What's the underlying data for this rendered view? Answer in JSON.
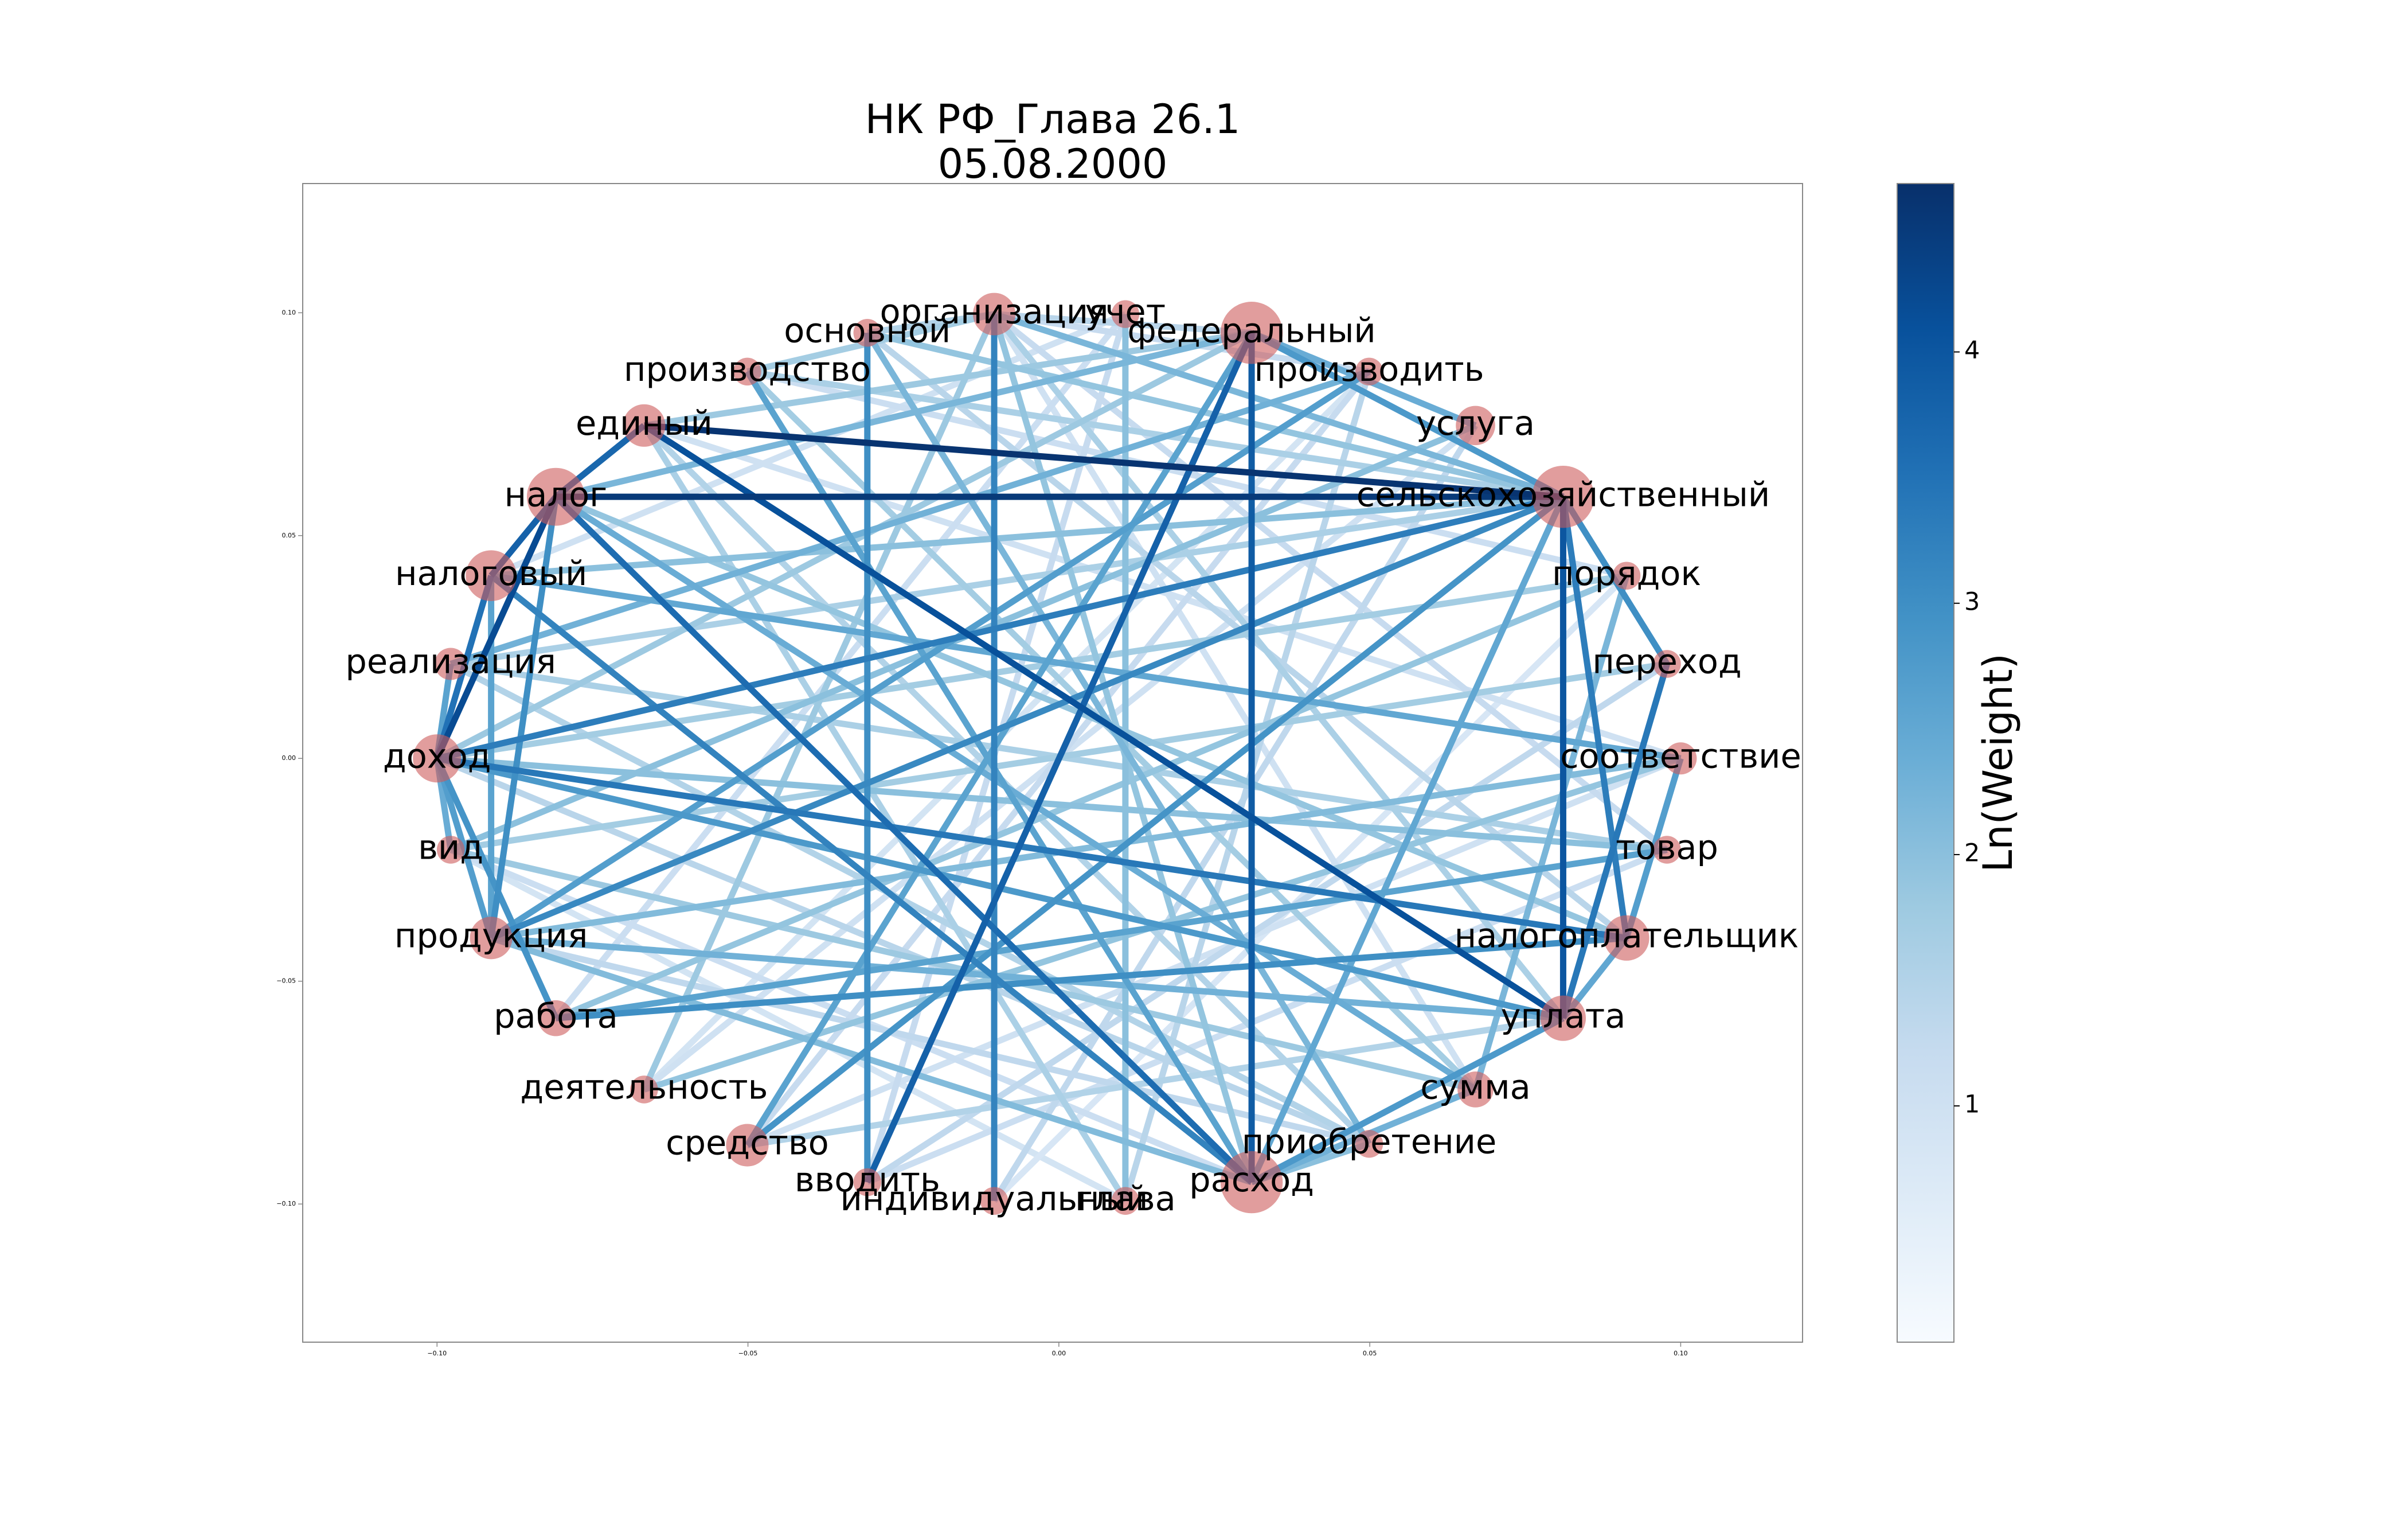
{
  "chart_data": {
    "type": "network",
    "title": "НК РФ_Глава 26.1",
    "subtitle": "05.08.2000",
    "xlim": [
      -0.1216,
      0.1196
    ],
    "ylim": [
      -0.131,
      0.129
    ],
    "xticks": [
      {
        "value": -0.1,
        "label": "−0.10"
      },
      {
        "value": -0.05,
        "label": "−0.05"
      },
      {
        "value": 0,
        "label": "0.00"
      },
      {
        "value": 0.05,
        "label": "0.05"
      },
      {
        "value": 0.1,
        "label": "0.10"
      }
    ],
    "yticks": [
      {
        "value": -0.1,
        "label": "−0.10"
      },
      {
        "value": -0.05,
        "label": "−0.05"
      },
      {
        "value": 0,
        "label": "0.00"
      },
      {
        "value": 0.05,
        "label": "0.05"
      },
      {
        "value": 0.1,
        "label": "0.10"
      }
    ],
    "node_color": "#cd5c5c",
    "nodes": [
      {
        "label": "организация",
        "x": -0.0104,
        "y": 0.0997,
        "size": 700
      },
      {
        "label": "учет",
        "x": 0.0107,
        "y": 0.0997,
        "size": 300
      },
      {
        "label": "федеральный",
        "x": 0.031,
        "y": 0.0955,
        "size": 1500
      },
      {
        "label": "производить",
        "x": 0.0499,
        "y": 0.0868,
        "size": 300
      },
      {
        "label": "услуга",
        "x": 0.067,
        "y": 0.0747,
        "size": 600
      },
      {
        "label": "сельскохозяйственный",
        "x": 0.0811,
        "y": 0.0587,
        "size": 1500
      },
      {
        "label": "порядок",
        "x": 0.0913,
        "y": 0.041,
        "size": 300
      },
      {
        "label": "переход",
        "x": 0.0978,
        "y": 0.0212,
        "size": 300
      },
      {
        "label": "соответствие",
        "x": 0.1,
        "y": 0,
        "size": 400
      },
      {
        "label": "товар",
        "x": 0.0978,
        "y": -0.0205,
        "size": 300
      },
      {
        "label": "налогоплательщик",
        "x": 0.0913,
        "y": -0.0403,
        "size": 800
      },
      {
        "label": "уплата",
        "x": 0.0811,
        "y": -0.0583,
        "size": 800
      },
      {
        "label": "сумма",
        "x": 0.067,
        "y": -0.0743,
        "size": 500
      },
      {
        "label": "приобретение",
        "x": 0.0499,
        "y": -0.0865,
        "size": 300
      },
      {
        "label": "расход",
        "x": 0.031,
        "y": -0.0951,
        "size": 1500
      },
      {
        "label": "глава",
        "x": 0.0107,
        "y": -0.0993,
        "size": 300
      },
      {
        "label": "индивидуальный",
        "x": -0.0104,
        "y": -0.0993,
        "size": 300
      },
      {
        "label": "вводить",
        "x": -0.0308,
        "y": -0.0951,
        "size": 300
      },
      {
        "label": "средство",
        "x": -0.0501,
        "y": -0.0868,
        "size": 700
      },
      {
        "label": "деятельность",
        "x": -0.0667,
        "y": -0.0743,
        "size": 300
      },
      {
        "label": "работа",
        "x": -0.0809,
        "y": -0.0583,
        "size": 500
      },
      {
        "label": "продукция",
        "x": -0.0913,
        "y": -0.0403,
        "size": 700
      },
      {
        "label": "вид",
        "x": -0.0978,
        "y": -0.0205,
        "size": 300
      },
      {
        "label": "доход",
        "x": -0.1,
        "y": 0,
        "size": 900
      },
      {
        "label": "реализация",
        "x": -0.0978,
        "y": 0.0212,
        "size": 400
      },
      {
        "label": "налоговый",
        "x": -0.0913,
        "y": 0.041,
        "size": 1000
      },
      {
        "label": "налог",
        "x": -0.0809,
        "y": 0.0587,
        "size": 1300
      },
      {
        "label": "единый",
        "x": -0.0667,
        "y": 0.0747,
        "size": 700
      },
      {
        "label": "производство",
        "x": -0.0501,
        "y": 0.0868,
        "size": 300
      },
      {
        "label": "основной",
        "x": -0.0308,
        "y": 0.0955,
        "size": 300
      }
    ],
    "edges": [
      [
        15,
        22,
        0.9
      ],
      [
        16,
        6,
        0.8
      ],
      [
        19,
        3,
        0.9
      ],
      [
        20,
        1,
        0.7
      ],
      [
        1,
        25,
        1.0
      ],
      [
        4,
        19,
        1.0
      ],
      [
        8,
        27,
        1.0
      ],
      [
        12,
        0,
        1.0
      ],
      [
        18,
        8,
        1.0
      ],
      [
        1,
        20,
        1.1
      ],
      [
        6,
        28,
        1.1
      ],
      [
        17,
        9,
        1.1
      ],
      [
        22,
        14,
        1.1
      ],
      [
        17,
        1,
        1.2
      ],
      [
        3,
        18,
        1.2
      ],
      [
        9,
        0,
        1.2
      ],
      [
        0,
        3,
        1.2
      ],
      [
        16,
        4,
        1.3
      ],
      [
        7,
        17,
        1.3
      ],
      [
        21,
        13,
        1.3
      ],
      [
        15,
        3,
        1.4
      ],
      [
        29,
        10,
        1.4
      ],
      [
        13,
        23,
        1.4
      ],
      [
        0,
        2,
        1.4
      ],
      [
        13,
        24,
        1.5
      ],
      [
        27,
        13,
        1.5
      ],
      [
        11,
        18,
        1.5
      ],
      [
        0,
        29,
        1.5
      ],
      [
        15,
        27,
        1.6
      ],
      [
        24,
        9,
        1.6
      ],
      [
        0,
        11,
        1.6
      ],
      [
        24,
        5,
        1.6
      ],
      [
        28,
        5,
        1.6
      ],
      [
        22,
        7,
        1.7
      ],
      [
        28,
        12,
        1.7
      ],
      [
        6,
        23,
        1.7
      ],
      [
        0,
        28,
        1.7
      ],
      [
        12,
        22,
        1.8
      ],
      [
        19,
        0,
        1.8
      ],
      [
        2,
        23,
        1.8
      ],
      [
        27,
        2,
        1.8
      ],
      [
        8,
        19,
        1.9
      ],
      [
        20,
        6,
        1.9
      ],
      [
        0,
        14,
        1.9
      ],
      [
        10,
        26,
        1.9
      ],
      [
        29,
        5,
        1.9
      ],
      [
        1,
        15,
        2.0
      ],
      [
        4,
        22,
        2.0
      ],
      [
        9,
        23,
        2.0
      ],
      [
        25,
        5,
        2.0
      ],
      [
        14,
        13,
        2.0
      ],
      [
        8,
        21,
        2.1
      ],
      [
        14,
        21,
        2.1
      ],
      [
        0,
        5,
        2.2
      ],
      [
        6,
        12,
        2.2
      ],
      [
        13,
        29,
        2.2
      ],
      [
        26,
        2,
        2.2
      ],
      [
        3,
        24,
        2.3
      ],
      [
        21,
        11,
        2.3
      ],
      [
        14,
        12,
        2.3
      ],
      [
        2,
        4,
        2.4
      ],
      [
        12,
        26,
        2.4
      ],
      [
        23,
        22,
        2.4
      ],
      [
        14,
        5,
        2.5
      ],
      [
        25,
        8,
        2.5
      ],
      [
        10,
        11,
        2.5
      ],
      [
        28,
        14,
        2.6
      ],
      [
        9,
        20,
        2.6
      ],
      [
        18,
        2,
        2.6
      ],
      [
        23,
        24,
        2.6
      ],
      [
        25,
        21,
        2.6
      ],
      [
        3,
        21,
        2.7
      ],
      [
        23,
        21,
        2.7
      ],
      [
        10,
        8,
        2.7
      ],
      [
        2,
        5,
        2.8
      ],
      [
        23,
        11,
        2.8
      ],
      [
        14,
        11,
        2.8
      ],
      [
        18,
        5,
        2.9
      ],
      [
        23,
        20,
        2.9
      ],
      [
        29,
        17,
        3.0
      ],
      [
        20,
        10,
        3.0
      ],
      [
        5,
        7,
        3.0
      ],
      [
        26,
        21,
        3.0
      ],
      [
        21,
        5,
        3.1
      ],
      [
        0,
        16,
        3.2
      ],
      [
        25,
        14,
        3.2
      ],
      [
        23,
        5,
        3.3
      ],
      [
        5,
        10,
        3.3
      ],
      [
        23,
        10,
        3.4
      ],
      [
        7,
        11,
        3.4
      ],
      [
        23,
        25,
        3.5
      ],
      [
        26,
        14,
        3.6
      ],
      [
        26,
        27,
        3.7
      ],
      [
        2,
        17,
        3.8
      ],
      [
        26,
        25,
        3.8
      ],
      [
        2,
        14,
        3.9
      ],
      [
        5,
        11,
        4.0
      ],
      [
        27,
        11,
        4.1
      ],
      [
        23,
        26,
        4.2
      ],
      [
        26,
        5,
        4.5
      ],
      [
        27,
        5,
        4.6
      ]
    ],
    "colormap": [
      "#f7fbff",
      "#deebf7",
      "#c6dbef",
      "#9ecae1",
      "#6baed6",
      "#4292c6",
      "#2171b5",
      "#08519c",
      "#08306b"
    ],
    "clim": [
      0.06,
      4.67
    ],
    "colorbar_ticks": [
      1,
      2,
      3,
      4
    ],
    "colorbar_label": "Ln(Weight)"
  }
}
